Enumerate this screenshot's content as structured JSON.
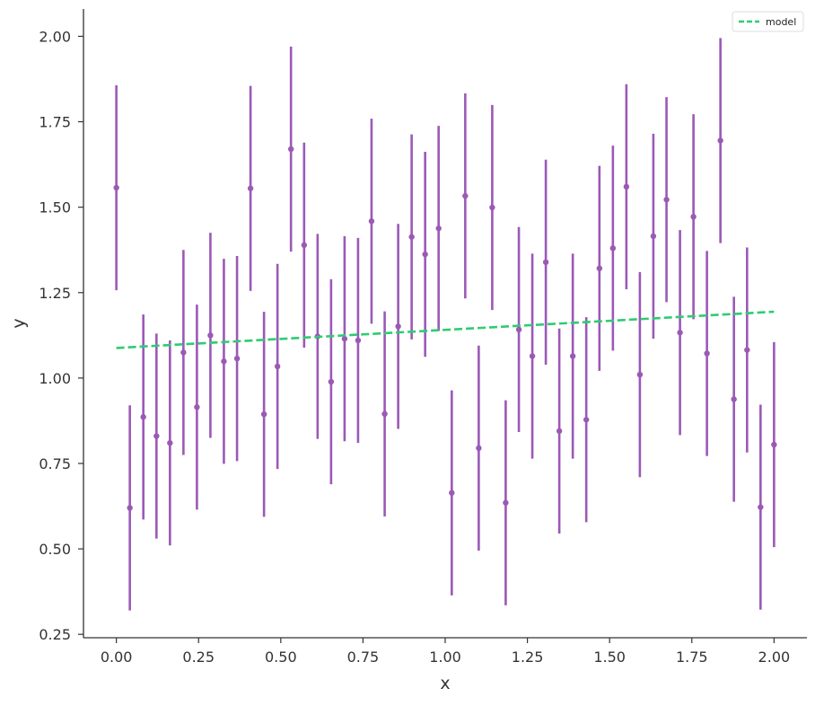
{
  "chart_data": {
    "type": "scatter",
    "title": "",
    "xlabel": "x",
    "ylabel": "y",
    "xlim": [
      -0.1,
      2.1
    ],
    "ylim": [
      0.24,
      2.08
    ],
    "xticks": [
      0.0,
      0.25,
      0.5,
      0.75,
      1.0,
      1.25,
      1.5,
      1.75,
      2.0
    ],
    "xtick_labels": [
      "0.00",
      "0.25",
      "0.50",
      "0.75",
      "1.00",
      "1.25",
      "1.50",
      "1.75",
      "2.00"
    ],
    "yticks": [
      0.25,
      0.5,
      0.75,
      1.0,
      1.25,
      1.5,
      1.75,
      2.0
    ],
    "ytick_labels": [
      "0.25",
      "0.50",
      "0.75",
      "1.00",
      "1.25",
      "1.50",
      "1.75",
      "2.00"
    ],
    "grid": false,
    "legend": {
      "position": "top-right",
      "entries": [
        "model"
      ]
    },
    "series": [
      {
        "kind": "errorbar",
        "color": "#9b59b6",
        "x": [
          0.0,
          0.041,
          0.082,
          0.122,
          0.163,
          0.204,
          0.245,
          0.286,
          0.327,
          0.367,
          0.408,
          0.449,
          0.49,
          0.531,
          0.571,
          0.612,
          0.653,
          0.694,
          0.735,
          0.776,
          0.816,
          0.857,
          0.898,
          0.939,
          0.98,
          1.02,
          1.061,
          1.102,
          1.143,
          1.184,
          1.224,
          1.265,
          1.306,
          1.347,
          1.388,
          1.429,
          1.469,
          1.51,
          1.551,
          1.592,
          1.633,
          1.673,
          1.714,
          1.755,
          1.796,
          1.837,
          1.878,
          1.918,
          1.959,
          2.0
        ],
        "y": [
          1.557,
          0.62,
          0.886,
          0.83,
          0.81,
          1.075,
          0.915,
          1.125,
          1.049,
          1.057,
          1.555,
          0.894,
          1.034,
          1.67,
          1.389,
          1.122,
          0.989,
          1.115,
          1.11,
          1.459,
          0.895,
          1.151,
          1.413,
          1.362,
          1.438,
          0.664,
          1.533,
          0.795,
          1.499,
          0.635,
          1.142,
          1.064,
          1.339,
          0.845,
          1.064,
          0.878,
          1.321,
          1.38,
          1.56,
          1.01,
          1.415,
          1.522,
          1.133,
          1.472,
          1.072,
          1.695,
          0.938,
          1.082,
          0.622,
          0.805
        ],
        "yerr": 0.3
      },
      {
        "kind": "line",
        "name": "model",
        "style": "dashed",
        "color": "#2ecc71",
        "x": [
          0.0,
          2.0
        ],
        "y": [
          1.088,
          1.194
        ]
      }
    ]
  }
}
